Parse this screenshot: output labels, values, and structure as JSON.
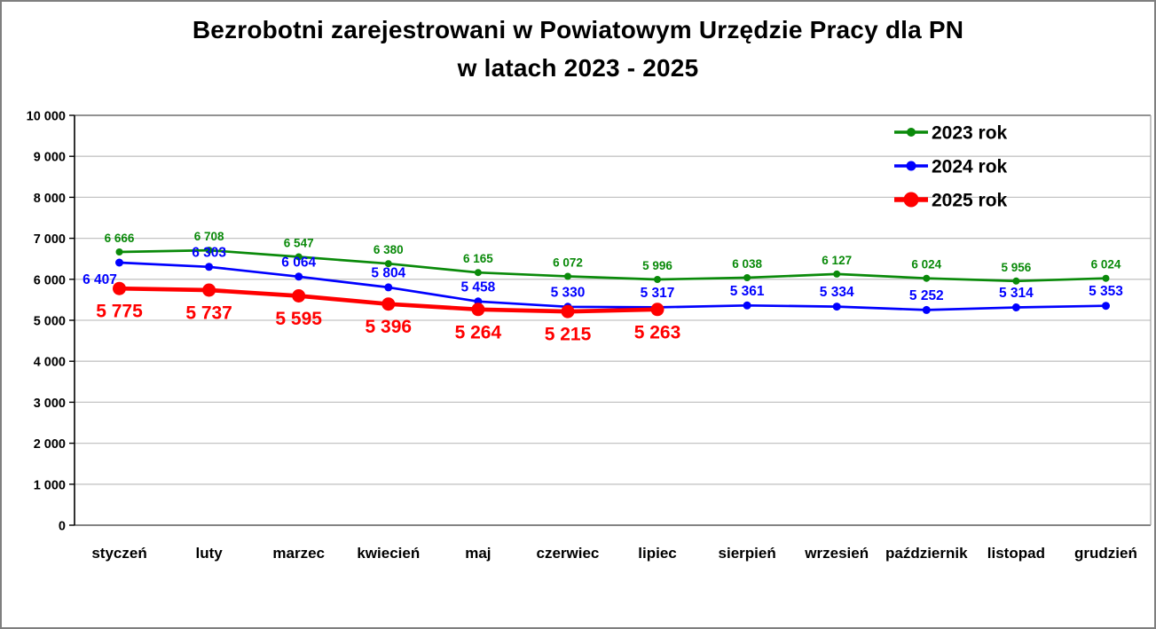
{
  "title": {
    "line1": "Bezrobotni zarejestrowani w Powiatowym Urzędzie Pracy dla PN",
    "line2": "w latach 2023 - 2025"
  },
  "chart_data": {
    "type": "line",
    "categories": [
      "styczeń",
      "luty",
      "marzec",
      "kwiecień",
      "maj",
      "czerwiec",
      "lipiec",
      "sierpień",
      "wrzesień",
      "październik",
      "listopad",
      "grudzień"
    ],
    "series": [
      {
        "name": "2023 rok",
        "color": "#0a8a0a",
        "values": [
          6666,
          6708,
          6547,
          6380,
          6165,
          6072,
          5996,
          6038,
          6127,
          6024,
          5956,
          6024
        ],
        "labels": [
          "6 666",
          "6 708",
          "6 547",
          "6 380",
          "6 165",
          "6 072",
          "5 996",
          "6 038",
          "6 127",
          "6 024",
          "5 956",
          "6 024"
        ],
        "line_width": 2.7,
        "marker_radius": 4,
        "label_font_size": 13.5,
        "label_side": "above",
        "label_overrides": {}
      },
      {
        "name": "2024 rok",
        "color": "#0000ff",
        "values": [
          6407,
          6303,
          6064,
          5804,
          5458,
          5330,
          5317,
          5361,
          5334,
          5252,
          5314,
          5353
        ],
        "labels": [
          "6 407",
          "6 303",
          "6 064",
          "5 804",
          "5 458",
          "5 330",
          "5 317",
          "5 361",
          "5 334",
          "5 252",
          "5 314",
          "5 353"
        ],
        "line_width": 2.7,
        "marker_radius": 4.5,
        "label_font_size": 15.5,
        "label_side": "above",
        "label_overrides": {
          "0": {
            "side": "below",
            "dx": -22
          }
        }
      },
      {
        "name": "2025 rok",
        "color": "#ff0000",
        "values": [
          5775,
          5737,
          5595,
          5396,
          5264,
          5215,
          5263
        ],
        "labels": [
          "5 775",
          "5 737",
          "5 595",
          "5 396",
          "5 264",
          "5 215",
          "5 263"
        ],
        "line_width": 4.7,
        "marker_radius": 7.5,
        "label_font_size": 21,
        "label_side": "below",
        "label_overrides": {}
      }
    ],
    "y_axis": {
      "min": 0,
      "max": 10000,
      "tick_step": 1000,
      "tick_labels": [
        "0",
        "1 000",
        "2 000",
        "3 000",
        "4 000",
        "5 000",
        "6 000",
        "7 000",
        "8 000",
        "9 000",
        "10 000"
      ]
    },
    "legend_position": "top-right",
    "grid": true
  }
}
